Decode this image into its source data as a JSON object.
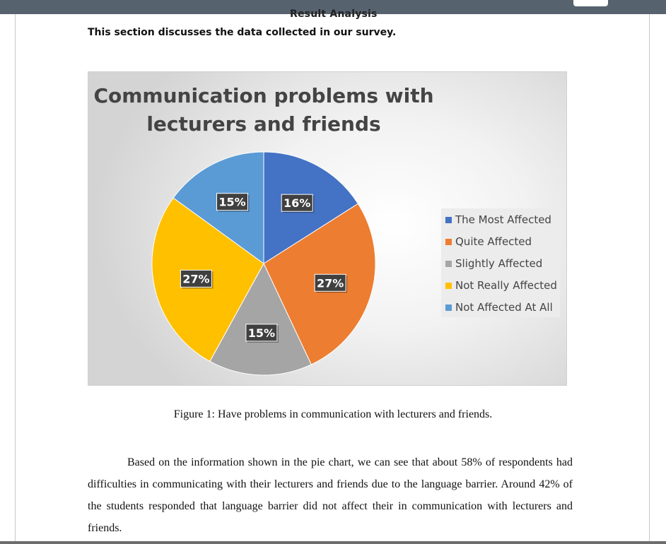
{
  "document": {
    "section_title": "Result Analysis",
    "intro": "This section discusses the data collected in our survey.",
    "caption": "Figure 1:  Have problems in communication with lecturers and friends.",
    "paragraph": "Based on the information shown in the pie chart, we can see that about 58% of respondents had difficulties in communicating with their lecturers and friends due to the language barrier. Around 42% of the students responded that language barrier did not affect their in communication with lecturers and friends."
  },
  "chart_data": {
    "type": "pie",
    "title": "Communication problems with lecturers and friends",
    "title_lines": [
      "Communication problems with",
      "lecturers and friends"
    ],
    "legend_position": "right",
    "slices": [
      {
        "label": "The Most Affected",
        "value": 16,
        "data_label": "16%",
        "color": "#4472c4"
      },
      {
        "label": "Quite Affected",
        "value": 27,
        "data_label": "27%",
        "color": "#ed7d31"
      },
      {
        "label": "Slightly Affected",
        "value": 15,
        "data_label": "15%",
        "color": "#a5a5a5"
      },
      {
        "label": "Not Really Affected",
        "value": 27,
        "data_label": "27%",
        "color": "#ffc000"
      },
      {
        "label": "Not Affected At All",
        "value": 15,
        "data_label": "15%",
        "color": "#5b9bd5"
      }
    ]
  }
}
